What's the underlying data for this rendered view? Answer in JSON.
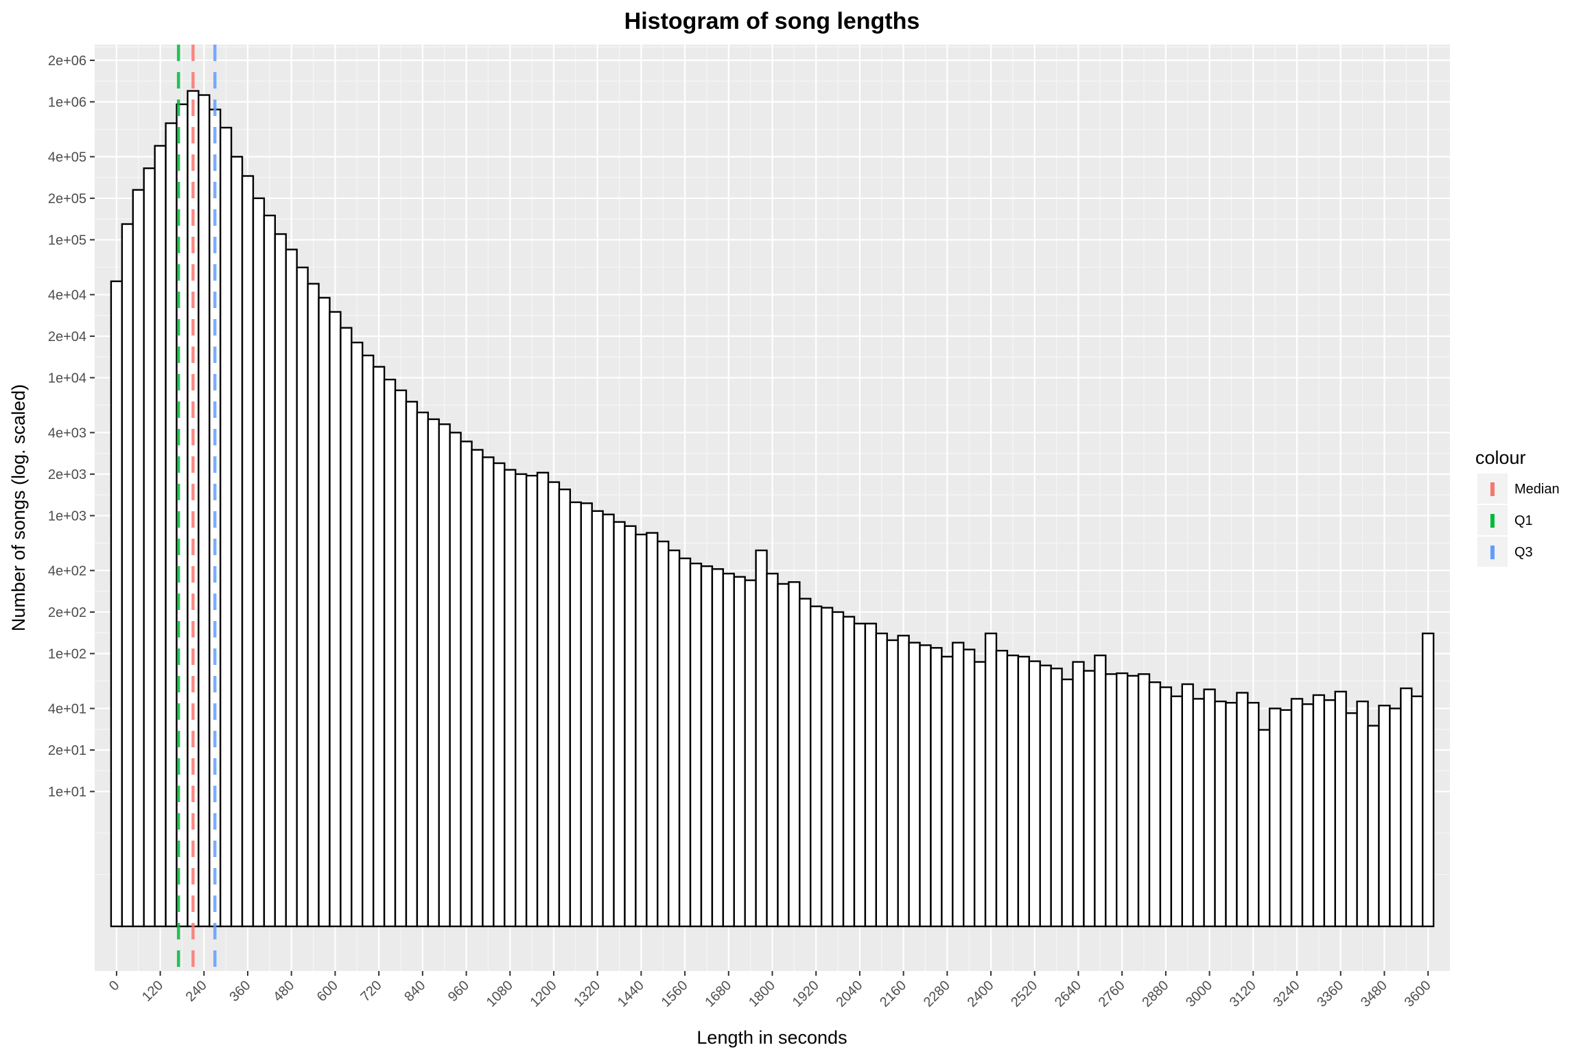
{
  "chart_data": {
    "type": "bar",
    "title": "Histogram of song lengths",
    "xlabel": "Length in seconds",
    "ylabel": "Number of songs (log. scaled)",
    "y_scale": "log10",
    "grid": true,
    "legend_position": "right",
    "bin_width": 30,
    "xlim": [
      -60,
      3660
    ],
    "ylim": [
      0.5,
      2600000
    ],
    "x_ticks": [
      0,
      120,
      240,
      360,
      480,
      600,
      720,
      840,
      960,
      1080,
      1200,
      1320,
      1440,
      1560,
      1680,
      1800,
      1920,
      2040,
      2160,
      2280,
      2400,
      2520,
      2640,
      2760,
      2880,
      3000,
      3120,
      3240,
      3360,
      3480,
      3600
    ],
    "y_ticks": [
      {
        "value": 2000000,
        "label": "2e+06"
      },
      {
        "value": 1000000,
        "label": "1e+06"
      },
      {
        "value": 400000,
        "label": "4e+05"
      },
      {
        "value": 200000,
        "label": "2e+05"
      },
      {
        "value": 100000,
        "label": "1e+05"
      },
      {
        "value": 40000,
        "label": "4e+04"
      },
      {
        "value": 20000,
        "label": "2e+04"
      },
      {
        "value": 10000,
        "label": "1e+04"
      },
      {
        "value": 4000,
        "label": "4e+03"
      },
      {
        "value": 2000,
        "label": "2e+03"
      },
      {
        "value": 1000,
        "label": "1e+03"
      },
      {
        "value": 400,
        "label": "4e+02"
      },
      {
        "value": 200,
        "label": "2e+02"
      },
      {
        "value": 100,
        "label": "1e+02"
      },
      {
        "value": 40,
        "label": "4e+01"
      },
      {
        "value": 20,
        "label": "2e+01"
      },
      {
        "value": 10,
        "label": "1e+01"
      }
    ],
    "bin_centers": [
      0,
      30,
      60,
      90,
      120,
      150,
      180,
      210,
      240,
      270,
      300,
      330,
      360,
      390,
      420,
      450,
      480,
      510,
      540,
      570,
      600,
      630,
      660,
      690,
      720,
      750,
      780,
      810,
      840,
      870,
      900,
      930,
      960,
      990,
      1020,
      1050,
      1080,
      1110,
      1140,
      1170,
      1200,
      1230,
      1260,
      1290,
      1320,
      1350,
      1380,
      1410,
      1440,
      1470,
      1500,
      1530,
      1560,
      1590,
      1620,
      1650,
      1680,
      1710,
      1740,
      1770,
      1800,
      1830,
      1860,
      1890,
      1920,
      1950,
      1980,
      2010,
      2040,
      2070,
      2100,
      2130,
      2160,
      2190,
      2220,
      2250,
      2280,
      2310,
      2340,
      2370,
      2400,
      2430,
      2460,
      2490,
      2520,
      2550,
      2580,
      2610,
      2640,
      2670,
      2700,
      2730,
      2760,
      2790,
      2820,
      2850,
      2880,
      2910,
      2940,
      2970,
      3000,
      3030,
      3060,
      3090,
      3120,
      3150,
      3180,
      3210,
      3240,
      3270,
      3300,
      3330,
      3360,
      3390,
      3420,
      3450,
      3480,
      3510,
      3540,
      3570,
      3600
    ],
    "values": [
      50000,
      130000,
      230000,
      330000,
      480000,
      700000,
      960000,
      1200000,
      1120000,
      880000,
      650000,
      400000,
      290000,
      200000,
      150000,
      110000,
      85000,
      63000,
      48000,
      38000,
      30000,
      23000,
      18000,
      14500,
      12000,
      9700,
      8100,
      6700,
      5600,
      5000,
      4600,
      4000,
      3450,
      3000,
      2650,
      2400,
      2150,
      2000,
      1950,
      2050,
      1750,
      1550,
      1250,
      1230,
      1080,
      1020,
      900,
      840,
      730,
      750,
      650,
      560,
      490,
      450,
      430,
      410,
      380,
      360,
      340,
      560,
      380,
      320,
      330,
      250,
      220,
      215,
      200,
      185,
      165,
      165,
      140,
      125,
      135,
      120,
      115,
      110,
      95,
      120,
      107,
      87,
      140,
      105,
      97,
      95,
      88,
      82,
      78,
      65,
      87,
      75,
      97,
      71,
      72,
      69,
      71,
      62,
      57,
      49,
      60,
      47,
      55,
      45,
      44,
      52,
      44,
      28,
      40,
      39,
      47,
      43,
      50,
      46,
      53,
      37,
      45,
      30,
      42,
      40,
      56,
      49,
      140
    ],
    "series": [
      {
        "name": "Median",
        "x": 210,
        "color": "#F8766D"
      },
      {
        "name": "Q1",
        "x": 170,
        "color": "#00BA38"
      },
      {
        "name": "Q3",
        "x": 270,
        "color": "#619CFF"
      }
    ],
    "legend": {
      "title": "colour",
      "entries": [
        "Median",
        "Q1",
        "Q3"
      ]
    }
  }
}
